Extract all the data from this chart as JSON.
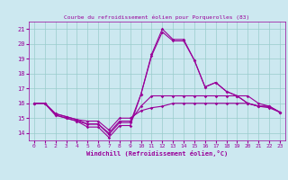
{
  "title": "Courbe du refroidissement éolien pour Porquerolles (83)",
  "xlabel": "Windchill (Refroidissement éolien,°C)",
  "bg_color": "#cce8f0",
  "line_color": "#990099",
  "grid_color": "#99cccc",
  "xlim": [
    -0.5,
    23.5
  ],
  "ylim": [
    13.5,
    21.5
  ],
  "yticks": [
    14,
    15,
    16,
    17,
    18,
    19,
    20,
    21
  ],
  "xticks": [
    0,
    1,
    2,
    3,
    4,
    5,
    6,
    7,
    8,
    9,
    10,
    11,
    12,
    13,
    14,
    15,
    16,
    17,
    18,
    19,
    20,
    21,
    22,
    23
  ],
  "series": [
    [
      16.0,
      16.0,
      15.2,
      15.0,
      14.8,
      14.4,
      14.4,
      13.7,
      14.5,
      14.5,
      16.6,
      19.3,
      21.0,
      20.3,
      20.3,
      18.9,
      17.1,
      17.4,
      16.8,
      16.5,
      16.0,
      15.8,
      15.8,
      15.4
    ],
    [
      16.0,
      16.0,
      15.2,
      15.0,
      14.8,
      14.6,
      14.6,
      13.9,
      14.7,
      14.7,
      16.6,
      19.2,
      20.8,
      20.2,
      20.2,
      18.9,
      17.1,
      17.4,
      16.8,
      16.5,
      16.0,
      15.8,
      15.8,
      15.4
    ],
    [
      16.0,
      16.0,
      15.3,
      15.1,
      14.9,
      14.6,
      14.6,
      14.0,
      14.8,
      14.8,
      15.8,
      16.5,
      16.5,
      16.5,
      16.5,
      16.5,
      16.5,
      16.5,
      16.5,
      16.5,
      16.5,
      16.0,
      15.8,
      15.4
    ],
    [
      16.0,
      16.0,
      15.3,
      15.1,
      14.9,
      14.8,
      14.8,
      14.2,
      15.0,
      15.0,
      15.5,
      15.7,
      15.8,
      16.0,
      16.0,
      16.0,
      16.0,
      16.0,
      16.0,
      16.0,
      16.0,
      15.8,
      15.7,
      15.4
    ]
  ]
}
